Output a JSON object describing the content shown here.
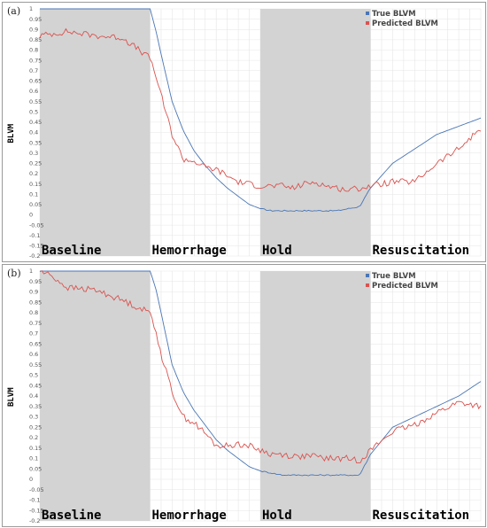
{
  "chart_data": [
    {
      "panel_label": "(a)",
      "type": "line",
      "ylabel": "BLVM",
      "ylim": [
        -0.2,
        1.0
      ],
      "y_ticks": [
        1,
        0.95,
        0.9,
        0.85,
        0.8,
        0.75,
        0.7,
        0.65,
        0.6,
        0.55,
        0.5,
        0.45,
        0.4,
        0.35,
        0.3,
        0.25,
        0.2,
        0.15,
        0.1,
        0.05,
        0,
        -0.05,
        -0.1,
        -0.15,
        -0.2
      ],
      "grid": true,
      "legend": "top-right",
      "phases": [
        {
          "label": "Baseline",
          "shaded": true
        },
        {
          "label": "Hemorrhage",
          "shaded": false
        },
        {
          "label": "Hold",
          "shaded": true
        },
        {
          "label": "Resuscitation",
          "shaded": false
        }
      ],
      "x": [
        0,
        0.25,
        0.5,
        0.75,
        1,
        1.05,
        1.1,
        1.2,
        1.3,
        1.4,
        1.5,
        1.6,
        1.7,
        1.8,
        1.9,
        2,
        2.1,
        2.2,
        2.3,
        2.4,
        2.5,
        2.6,
        2.7,
        2.8,
        2.9,
        3,
        3.2,
        3.4,
        3.6,
        3.8,
        4
      ],
      "series": [
        {
          "name": "True BLVM",
          "color": "#4a76b5",
          "values": [
            1,
            1,
            1,
            1,
            1,
            0.9,
            0.78,
            0.55,
            0.41,
            0.31,
            0.24,
            0.18,
            0.13,
            0.09,
            0.05,
            0.03,
            0.02,
            0.02,
            0.02,
            0.02,
            0.02,
            0.02,
            0.02,
            0.03,
            0.04,
            0.13,
            0.25,
            0.32,
            0.39,
            0.43,
            0.47
          ]
        },
        {
          "name": "Predicted BLVM",
          "color": "#d9534f",
          "values": [
            0.87,
            0.89,
            0.87,
            0.86,
            0.76,
            0.68,
            0.58,
            0.39,
            0.27,
            0.26,
            0.23,
            0.22,
            0.19,
            0.16,
            0.15,
            0.14,
            0.14,
            0.14,
            0.13,
            0.15,
            0.16,
            0.14,
            0.13,
            0.12,
            0.13,
            0.14,
            0.16,
            0.16,
            0.25,
            0.32,
            0.42
          ]
        }
      ]
    },
    {
      "panel_label": "(b)",
      "type": "line",
      "ylabel": "BLVM",
      "ylim": [
        -0.2,
        1.0
      ],
      "y_ticks": [
        1,
        0.95,
        0.9,
        0.85,
        0.8,
        0.75,
        0.7,
        0.65,
        0.6,
        0.55,
        0.5,
        0.45,
        0.4,
        0.35,
        0.3,
        0.25,
        0.2,
        0.15,
        0.1,
        0.05,
        0,
        -0.05,
        -0.1,
        -0.15,
        -0.2
      ],
      "grid": true,
      "legend": "top-right",
      "phases": [
        {
          "label": "Baseline",
          "shaded": true
        },
        {
          "label": "Hemorrhage",
          "shaded": false
        },
        {
          "label": "Hold",
          "shaded": true
        },
        {
          "label": "Resuscitation",
          "shaded": false
        }
      ],
      "x": [
        0,
        0.1,
        0.25,
        0.5,
        0.75,
        1,
        1.05,
        1.1,
        1.2,
        1.3,
        1.4,
        1.5,
        1.6,
        1.7,
        1.8,
        1.9,
        2,
        2.1,
        2.2,
        2.3,
        2.4,
        2.5,
        2.6,
        2.7,
        2.8,
        2.9,
        3,
        3.2,
        3.4,
        3.6,
        3.8,
        4
      ],
      "series": [
        {
          "name": "True BLVM",
          "color": "#4a76b5",
          "values": [
            1,
            1,
            1,
            1,
            1,
            1,
            0.92,
            0.8,
            0.55,
            0.42,
            0.33,
            0.26,
            0.19,
            0.14,
            0.1,
            0.06,
            0.04,
            0.03,
            0.02,
            0.02,
            0.02,
            0.02,
            0.02,
            0.02,
            0.02,
            0.02,
            0.12,
            0.25,
            0.3,
            0.35,
            0.4,
            0.47
          ]
        },
        {
          "name": "Predicted BLVM",
          "color": "#d9534f",
          "values": [
            1,
            0.98,
            0.92,
            0.91,
            0.86,
            0.8,
            0.72,
            0.6,
            0.42,
            0.3,
            0.27,
            0.22,
            0.16,
            0.16,
            0.17,
            0.16,
            0.14,
            0.12,
            0.12,
            0.11,
            0.11,
            0.11,
            0.1,
            0.1,
            0.1,
            0.09,
            0.14,
            0.23,
            0.26,
            0.32,
            0.37,
            0.35
          ]
        }
      ]
    }
  ]
}
